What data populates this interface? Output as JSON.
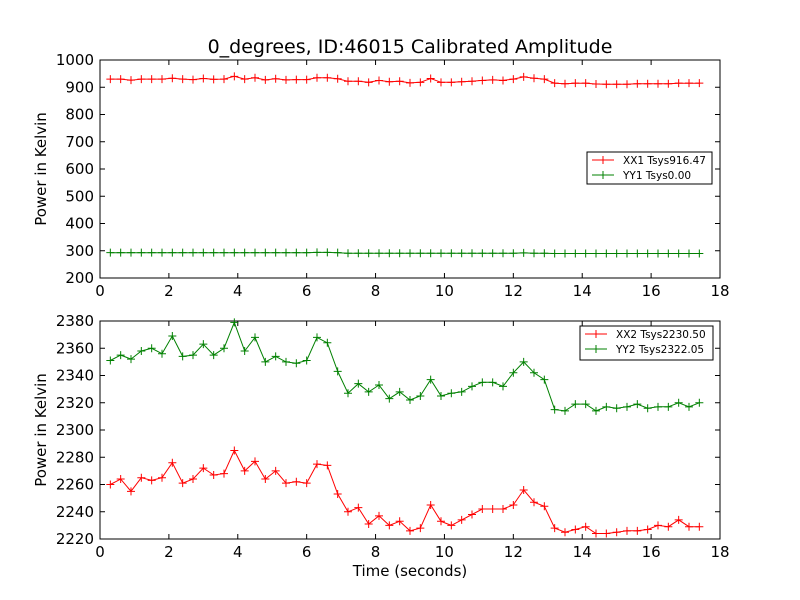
{
  "chart_data": [
    {
      "type": "line",
      "title": "0_degrees, ID:46015 Calibrated Amplitude",
      "xlabel": "",
      "ylabel": "Power in Kelvin",
      "xlim": [
        0,
        18
      ],
      "ylim": [
        200,
        1000
      ],
      "xticks": [
        "0",
        "2",
        "4",
        "6",
        "8",
        "10",
        "12",
        "14",
        "16",
        "18"
      ],
      "yticks": [
        "200",
        "300",
        "400",
        "500",
        "600",
        "700",
        "800",
        "900",
        "1000"
      ],
      "grid": false,
      "legend_position": "center-right",
      "x": [
        0.3,
        0.6,
        0.9,
        1.2,
        1.5,
        1.8,
        2.1,
        2.4,
        2.7,
        3.0,
        3.3,
        3.6,
        3.9,
        4.2,
        4.5,
        4.8,
        5.1,
        5.4,
        5.7,
        6.0,
        6.3,
        6.6,
        6.9,
        7.2,
        7.5,
        7.8,
        8.1,
        8.4,
        8.7,
        9.0,
        9.3,
        9.6,
        9.9,
        10.2,
        10.5,
        10.8,
        11.1,
        11.4,
        11.7,
        12.0,
        12.3,
        12.6,
        12.9,
        13.2,
        13.5,
        13.8,
        14.1,
        14.4,
        14.7,
        15.0,
        15.3,
        15.6,
        15.9,
        16.2,
        16.5,
        16.8,
        17.1,
        17.4
      ],
      "series": [
        {
          "name": "XX1 Tsys916.47",
          "color": "#ff0000",
          "values": [
            930,
            930,
            926,
            930,
            930,
            930,
            933,
            930,
            928,
            932,
            929,
            930,
            940,
            930,
            935,
            927,
            931,
            927,
            928,
            928,
            935,
            935,
            931,
            922,
            922,
            918,
            925,
            920,
            922,
            916,
            918,
            932,
            918,
            918,
            920,
            922,
            925,
            927,
            925,
            930,
            938,
            933,
            930,
            915,
            913,
            915,
            915,
            912,
            911,
            911,
            911,
            913,
            913,
            913,
            913,
            915,
            915,
            915
          ]
        },
        {
          "name": "YY1 Tsys0.00",
          "color": "#008000",
          "values": [
            293,
            293,
            293,
            293,
            293,
            293,
            293,
            293,
            293,
            293,
            293,
            293,
            293,
            293,
            293,
            293,
            293,
            293,
            293,
            293,
            294,
            294,
            293,
            291,
            291,
            291,
            291,
            291,
            291,
            291,
            291,
            291,
            291,
            291,
            291,
            291,
            291,
            291,
            291,
            291,
            292,
            291,
            291,
            290,
            290,
            290,
            290,
            290,
            290,
            290,
            290,
            290,
            290,
            290,
            290,
            290,
            290,
            290
          ]
        }
      ]
    },
    {
      "type": "line",
      "title": "",
      "xlabel": "Time (seconds)",
      "ylabel": "Power in Kelvin",
      "xlim": [
        0,
        18
      ],
      "ylim": [
        2220,
        2380
      ],
      "xticks": [
        "0",
        "2",
        "4",
        "6",
        "8",
        "10",
        "12",
        "14",
        "16",
        "18"
      ],
      "yticks": [
        "2220",
        "2240",
        "2260",
        "2280",
        "2300",
        "2320",
        "2340",
        "2360",
        "2380"
      ],
      "grid": false,
      "legend_position": "top-right",
      "x": [
        0.3,
        0.6,
        0.9,
        1.2,
        1.5,
        1.8,
        2.1,
        2.4,
        2.7,
        3.0,
        3.3,
        3.6,
        3.9,
        4.2,
        4.5,
        4.8,
        5.1,
        5.4,
        5.7,
        6.0,
        6.3,
        6.6,
        6.9,
        7.2,
        7.5,
        7.8,
        8.1,
        8.4,
        8.7,
        9.0,
        9.3,
        9.6,
        9.9,
        10.2,
        10.5,
        10.8,
        11.1,
        11.4,
        11.7,
        12.0,
        12.3,
        12.6,
        12.9,
        13.2,
        13.5,
        13.8,
        14.1,
        14.4,
        14.7,
        15.0,
        15.3,
        15.6,
        15.9,
        16.2,
        16.5,
        16.8,
        17.1,
        17.4
      ],
      "series": [
        {
          "name": "XX2 Tsys2230.50",
          "color": "#ff0000",
          "values": [
            2260,
            2264,
            2255,
            2265,
            2263,
            2265,
            2276,
            2261,
            2264,
            2272,
            2267,
            2268,
            2285,
            2270,
            2277,
            2264,
            2270,
            2261,
            2262,
            2261,
            2275,
            2274,
            2253,
            2240,
            2243,
            2231,
            2237,
            2230,
            2233,
            2226,
            2228,
            2245,
            2233,
            2230,
            2234,
            2238,
            2242,
            2242,
            2242,
            2245,
            2256,
            2247,
            2244,
            2228,
            2225,
            2227,
            2229,
            2224,
            2224,
            2225,
            2226,
            2226,
            2227,
            2230,
            2229,
            2234,
            2229,
            2229
          ]
        },
        {
          "name": "YY2 Tsys2322.05",
          "color": "#008000",
          "values": [
            2351,
            2355,
            2352,
            2358,
            2360,
            2356,
            2369,
            2354,
            2355,
            2363,
            2355,
            2360,
            2379,
            2358,
            2368,
            2350,
            2354,
            2350,
            2349,
            2351,
            2368,
            2364,
            2343,
            2327,
            2334,
            2328,
            2333,
            2323,
            2328,
            2322,
            2325,
            2337,
            2325,
            2327,
            2328,
            2332,
            2335,
            2335,
            2332,
            2342,
            2350,
            2342,
            2337,
            2315,
            2314,
            2319,
            2319,
            2314,
            2317,
            2316,
            2317,
            2319,
            2316,
            2317,
            2317,
            2320,
            2317,
            2320
          ]
        }
      ]
    }
  ]
}
